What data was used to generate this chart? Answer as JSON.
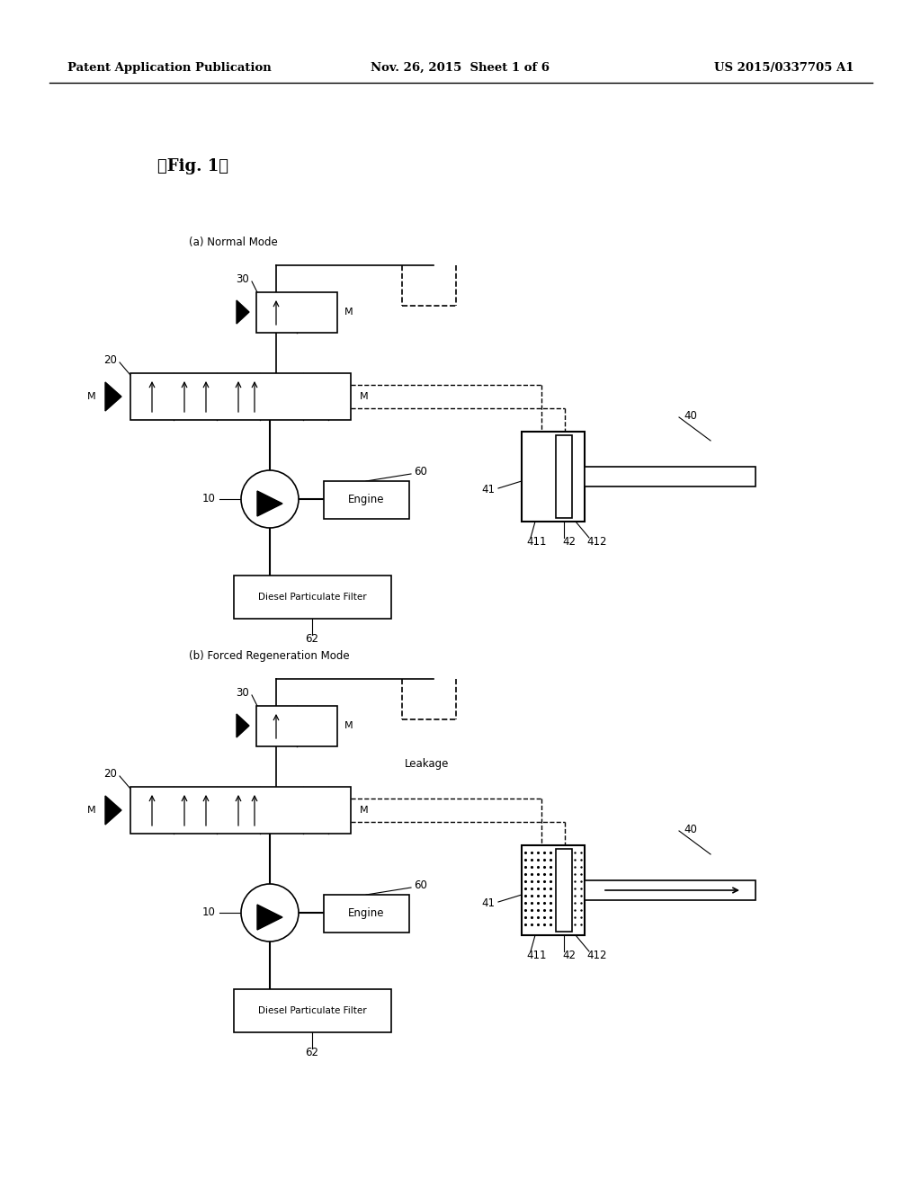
{
  "bg_color": "#ffffff",
  "header_left": "Patent Application Publication",
  "header_mid": "Nov. 26, 2015  Sheet 1 of 6",
  "header_right": "US 2015/0337705 A1",
  "fig_label": "【Fig. 1】",
  "section_a_label": "(a) Normal Mode",
  "section_b_label": "(b) Forced Regeneration Mode"
}
